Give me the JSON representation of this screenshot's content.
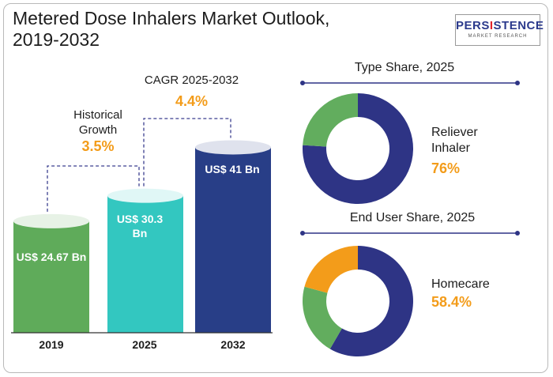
{
  "header": {
    "title_line1": "Metered Dose Inhalers Market Outlook,",
    "title_line2": "2019-2032",
    "logo_pre": "PERS",
    "logo_accent": "I",
    "logo_post": "STENCE",
    "logo_sub": "MARKET RESEARCH"
  },
  "colors": {
    "bar_2019": "#5fab5a",
    "bar_2025": "#33c7c0",
    "bar_2032": "#283e87",
    "accent": "#f39c1a",
    "donut_primary": "#2e3485",
    "donut_green": "#62ad5e",
    "donut_orange": "#f39c1a"
  },
  "chart_data": [
    {
      "type": "bar",
      "categories": [
        "2019",
        "2025",
        "2032"
      ],
      "values": [
        24.67,
        30.3,
        41
      ],
      "value_labels": [
        "US$ 24.67 Bn",
        "US$ 30.3 Bn",
        "US$ 41 Bn"
      ],
      "annotations": [
        {
          "label_line1": "Historical",
          "label_line2": "Growth",
          "value": "3.5%"
        },
        {
          "label_line1": "CAGR 2025-2032",
          "value": "4.4%"
        }
      ]
    },
    {
      "type": "pie",
      "title": "Type Share, 2025",
      "slices": [
        {
          "name": "Reliever Inhaler",
          "value": 76
        },
        {
          "name": "Other",
          "value": 24
        }
      ],
      "label_line1": "Reliever",
      "label_line2": "Inhaler",
      "pct_label": "76%"
    },
    {
      "type": "pie",
      "title": "End User Share, 2025",
      "slices": [
        {
          "name": "Homecare",
          "value": 58.4
        },
        {
          "name": "Other 1",
          "value": 20.8
        },
        {
          "name": "Other 2",
          "value": 20.8
        }
      ],
      "label_line1": "Homecare",
      "pct_label": "58.4%"
    }
  ]
}
